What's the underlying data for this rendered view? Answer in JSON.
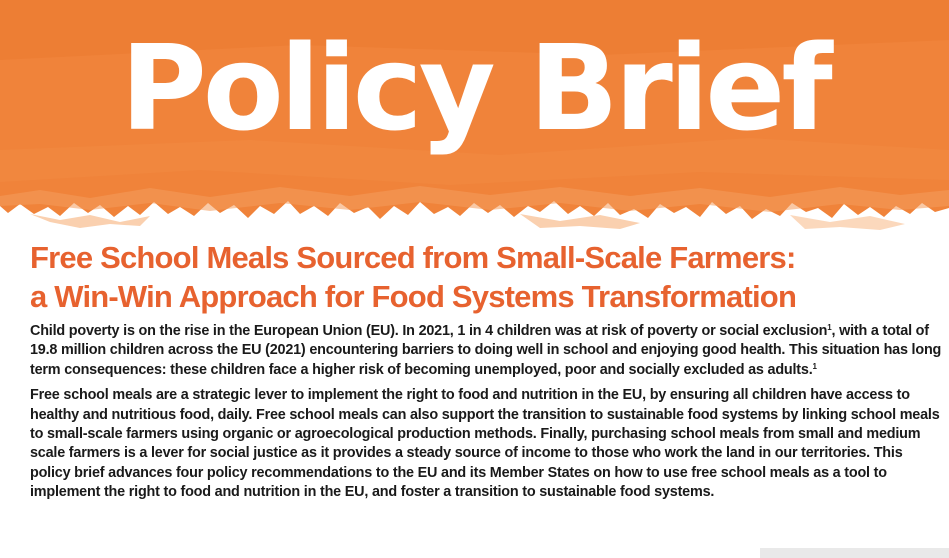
{
  "banner": {
    "title": "Policy Brief",
    "color": "#f0833a"
  },
  "headline": {
    "line1": "Free School Meals Sourced from Small-Scale Farmers:",
    "line2": "a Win-Win Approach for Food Systems Transformation",
    "color": "#e7622f"
  },
  "paragraph1": {
    "text_a": "Child poverty is on the rise in the European Union (EU). In 2021, 1 in 4 children was at risk of poverty or social exclusion",
    "footnote_a": "1",
    "text_b": ", with a total of 19.8 million children across the EU (2021) encountering barriers to doing well in school and enjoying good health. This situation has long term consequences: these children face a higher risk of becoming unemployed, poor and socially excluded as adults.",
    "footnote_b": "1"
  },
  "paragraph2": {
    "text": "Free school meals are a strategic lever to implement the right to food and nutrition in the EU, by ensuring all children have access to healthy and nutritious food, daily. Free school meals can also support the transition to sustainable food systems by linking school meals to small-scale farmers using organic or agroecological production methods. Finally, purchasing school meals from small and medium scale farmers is a lever for social justice as it provides a steady source of income to those who work the land in our territories. This policy brief advances four policy recommendations to the EU and its Member States on how to use free school meals as a tool to implement the right to food and nutrition in the EU, and foster a transition to sustainable food systems."
  }
}
